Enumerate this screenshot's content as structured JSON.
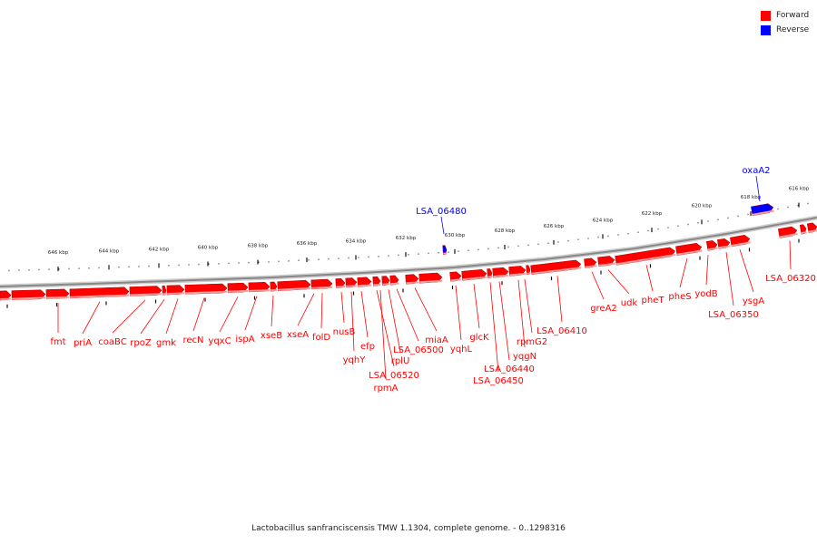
{
  "colors": {
    "forward": "#ff0000",
    "reverse": "#0000ff",
    "backbone": "#888888"
  },
  "legend": [
    {
      "label": "Forward",
      "color": "#ff0000"
    },
    {
      "label": "Reverse",
      "color": "#0000ff"
    }
  ],
  "footer": "Lactobacillus sanfranciscensis TMW 1.1304, complete genome. - 0..1298316",
  "axis": {
    "ticks": [
      "646 kbp",
      "644 kbp",
      "642 kbp",
      "640 kbp",
      "638 kbp",
      "636 kbp",
      "634 kbp",
      "632 kbp",
      "630 kbp",
      "628 kbp",
      "626 kbp",
      "624 kbp",
      "622 kbp",
      "620 kbp",
      "618 kbp",
      "616 kbp"
    ]
  },
  "genes": {
    "forward": [
      "fmt",
      "priA",
      "coaBC",
      "rpoZ",
      "gmk",
      "recN",
      "yqxC",
      "ispA",
      "xseB",
      "xseA",
      "folD",
      "nusB",
      "yqhY",
      "efp",
      "LSA_06520",
      "rpmA",
      "rplU",
      "LSA_06500",
      "miaA",
      "yqhL",
      "glcK",
      "LSA_06450",
      "LSA_06440",
      "yqgN",
      "rpmG2",
      "LSA_06410",
      "greA2",
      "udk",
      "pheT",
      "pheS",
      "yodB",
      "LSA_06350",
      "ysgA",
      "LSA_06320"
    ],
    "reverse": [
      "LSA_06480",
      "oxaA2"
    ]
  }
}
